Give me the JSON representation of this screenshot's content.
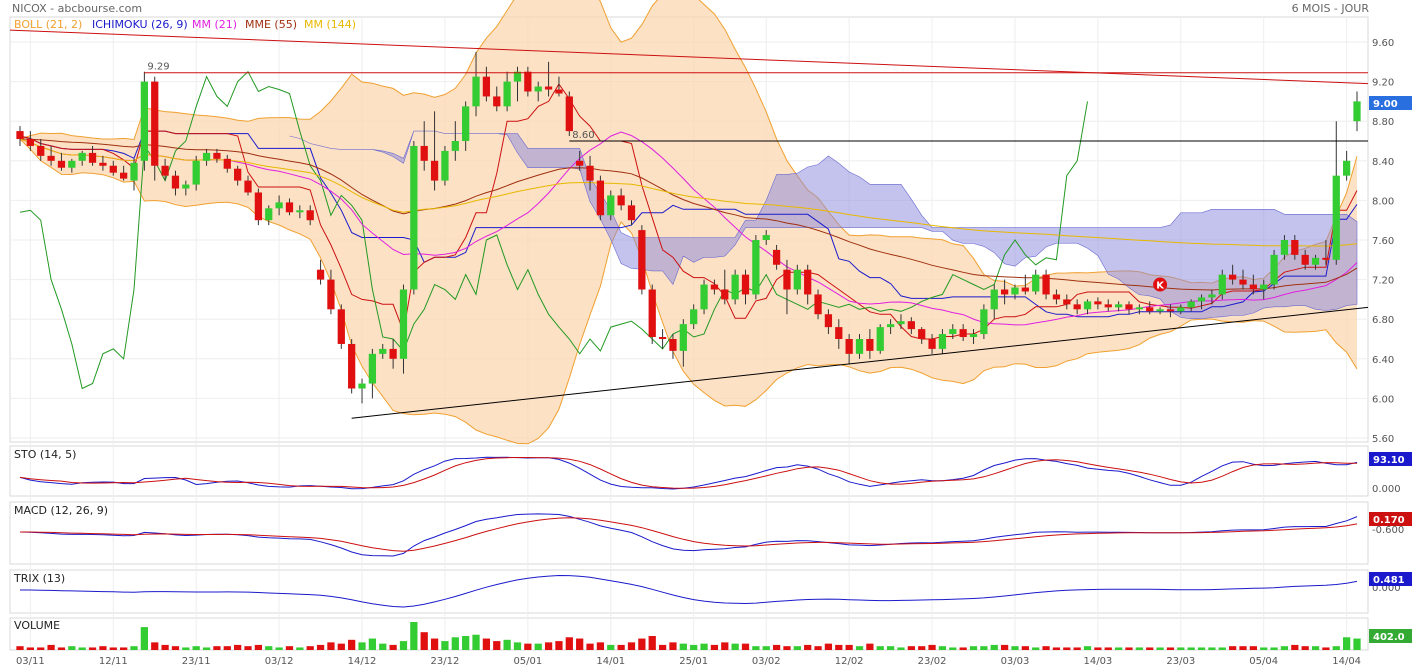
{
  "header": {
    "site_title": "NICOX - abcbourse.com",
    "period": "6 MOIS - JOUR"
  },
  "legend": [
    {
      "label": "BOLL (21, 2)",
      "color": "#f0a030"
    },
    {
      "label": "ICHIMOKU (26, 9)",
      "color": "#1a1acc"
    },
    {
      "label": "MM (21)",
      "color": "#e020e0"
    },
    {
      "label": "MME (55)",
      "color": "#a03010"
    },
    {
      "label": "MM (144)",
      "color": "#e8b800"
    }
  ],
  "chart_data": [
    {
      "type": "candlestick",
      "title": "NICOX",
      "ylim": [
        5.6,
        9.8
      ],
      "yticks": [
        "5.60",
        "6.00",
        "6.40",
        "6.80",
        "7.20",
        "7.60",
        "8.00",
        "8.40",
        "8.80",
        "9.20",
        "9.60"
      ],
      "xticks": [
        "03/11",
        "12/11",
        "23/11",
        "03/12",
        "14/12",
        "23/12",
        "05/01",
        "14/01",
        "25/01",
        "03/02",
        "12/02",
        "23/02",
        "03/03",
        "14/03",
        "23/03",
        "05/04",
        "14/04"
      ],
      "annotations": [
        {
          "text": "9.29",
          "value": 9.29
        },
        {
          "text": "8.60",
          "value": 8.6
        }
      ],
      "last_value": {
        "text": "9.00",
        "value": 9.0
      },
      "signal_marker": {
        "text": "K",
        "value": 7.15
      },
      "horizontal_lines": [
        9.29,
        8.6
      ],
      "colors": {
        "up": "#33cc33",
        "down": "#e01010",
        "cloud": "#8888dd",
        "bollinger_band": "#fbd7b0"
      },
      "ohlc": [
        [
          8.7,
          8.75,
          8.55,
          8.62
        ],
        [
          8.62,
          8.7,
          8.5,
          8.55
        ],
        [
          8.55,
          8.62,
          8.4,
          8.45
        ],
        [
          8.45,
          8.55,
          8.35,
          8.4
        ],
        [
          8.4,
          8.48,
          8.3,
          8.33
        ],
        [
          8.33,
          8.42,
          8.28,
          8.4
        ],
        [
          8.4,
          8.5,
          8.35,
          8.48
        ],
        [
          8.48,
          8.55,
          8.35,
          8.38
        ],
        [
          8.38,
          8.45,
          8.3,
          8.35
        ],
        [
          8.35,
          8.4,
          8.25,
          8.28
        ],
        [
          8.28,
          8.35,
          8.2,
          8.22
        ],
        [
          8.2,
          8.42,
          8.1,
          8.38
        ],
        [
          8.4,
          9.3,
          8.3,
          9.2
        ],
        [
          9.2,
          9.25,
          8.2,
          8.35
        ],
        [
          8.35,
          8.42,
          8.2,
          8.25
        ],
        [
          8.25,
          8.3,
          8.05,
          8.12
        ],
        [
          8.12,
          8.2,
          8.05,
          8.16
        ],
        [
          8.16,
          8.45,
          8.1,
          8.4
        ],
        [
          8.4,
          8.52,
          8.35,
          8.48
        ],
        [
          8.48,
          8.52,
          8.38,
          8.42
        ],
        [
          8.42,
          8.46,
          8.28,
          8.32
        ],
        [
          8.32,
          8.35,
          8.15,
          8.2
        ],
        [
          8.2,
          8.25,
          8.05,
          8.08
        ],
        [
          8.08,
          8.12,
          7.75,
          7.8
        ],
        [
          7.8,
          7.95,
          7.75,
          7.92
        ],
        [
          7.92,
          8.05,
          7.85,
          7.98
        ],
        [
          7.98,
          8.02,
          7.85,
          7.88
        ],
        [
          7.88,
          7.95,
          7.82,
          7.9
        ],
        [
          7.9,
          7.95,
          7.75,
          7.8
        ],
        [
          7.3,
          7.4,
          7.15,
          7.2
        ],
        [
          7.2,
          7.3,
          6.85,
          6.9
        ],
        [
          6.9,
          6.95,
          6.5,
          6.55
        ],
        [
          6.55,
          6.6,
          6.05,
          6.1
        ],
        [
          6.1,
          6.2,
          5.95,
          6.15
        ],
        [
          6.15,
          6.5,
          6.0,
          6.45
        ],
        [
          6.45,
          6.55,
          6.4,
          6.5
        ],
        [
          6.5,
          6.6,
          6.3,
          6.4
        ],
        [
          6.4,
          7.15,
          6.25,
          7.1
        ],
        [
          7.1,
          8.6,
          7.05,
          8.55
        ],
        [
          8.55,
          8.8,
          8.3,
          8.4
        ],
        [
          8.4,
          8.9,
          8.1,
          8.2
        ],
        [
          8.2,
          8.55,
          8.15,
          8.5
        ],
        [
          8.5,
          8.8,
          8.4,
          8.6
        ],
        [
          8.6,
          9.0,
          8.5,
          8.95
        ],
        [
          8.95,
          9.5,
          8.85,
          9.25
        ],
        [
          9.25,
          9.35,
          9.0,
          9.05
        ],
        [
          9.05,
          9.15,
          8.9,
          8.95
        ],
        [
          8.95,
          9.3,
          8.9,
          9.2
        ],
        [
          9.2,
          9.35,
          9.0,
          9.3
        ],
        [
          9.3,
          9.35,
          9.05,
          9.1
        ],
        [
          9.1,
          9.2,
          9.0,
          9.15
        ],
        [
          9.15,
          9.4,
          9.05,
          9.12
        ],
        [
          9.12,
          9.25,
          9.05,
          9.08
        ],
        [
          9.05,
          9.1,
          8.65,
          8.7
        ],
        [
          8.4,
          8.5,
          8.3,
          8.35
        ],
        [
          8.35,
          8.45,
          8.1,
          8.2
        ],
        [
          8.2,
          8.25,
          7.8,
          7.85
        ],
        [
          7.85,
          8.1,
          7.8,
          8.05
        ],
        [
          8.05,
          8.12,
          7.9,
          7.95
        ],
        [
          7.95,
          8.0,
          7.75,
          7.8
        ],
        [
          7.7,
          7.75,
          7.05,
          7.1
        ],
        [
          7.1,
          7.15,
          6.55,
          6.62
        ],
        [
          6.62,
          6.7,
          6.5,
          6.6
        ],
        [
          6.6,
          6.65,
          6.4,
          6.48
        ],
        [
          6.48,
          6.8,
          6.32,
          6.75
        ],
        [
          6.75,
          6.95,
          6.7,
          6.9
        ],
        [
          6.9,
          7.2,
          6.85,
          7.15
        ],
        [
          7.15,
          7.2,
          7.05,
          7.1
        ],
        [
          7.1,
          7.3,
          6.95,
          7.0
        ],
        [
          7.0,
          7.3,
          6.95,
          7.25
        ],
        [
          7.25,
          7.3,
          6.95,
          7.05
        ],
        [
          7.05,
          7.65,
          7.0,
          7.6
        ],
        [
          7.6,
          7.7,
          7.55,
          7.65
        ],
        [
          7.5,
          7.55,
          7.3,
          7.35
        ],
        [
          7.3,
          7.4,
          6.85,
          7.1
        ],
        [
          7.1,
          7.35,
          7.05,
          7.3
        ],
        [
          7.3,
          7.35,
          6.95,
          7.05
        ],
        [
          7.05,
          7.1,
          6.8,
          6.85
        ],
        [
          6.85,
          6.9,
          6.65,
          6.72
        ],
        [
          6.72,
          6.8,
          6.5,
          6.6
        ],
        [
          6.6,
          6.65,
          6.35,
          6.45
        ],
        [
          6.45,
          6.65,
          6.4,
          6.6
        ],
        [
          6.6,
          6.7,
          6.4,
          6.48
        ],
        [
          6.48,
          6.75,
          6.45,
          6.72
        ],
        [
          6.72,
          6.8,
          6.65,
          6.75
        ],
        [
          6.75,
          6.85,
          6.7,
          6.78
        ],
        [
          6.78,
          6.82,
          6.65,
          6.7
        ],
        [
          6.7,
          6.72,
          6.55,
          6.6
        ],
        [
          6.6,
          6.65,
          6.45,
          6.5
        ],
        [
          6.5,
          6.7,
          6.45,
          6.65
        ],
        [
          6.65,
          6.75,
          6.6,
          6.7
        ],
        [
          6.7,
          6.75,
          6.58,
          6.62
        ],
        [
          6.62,
          6.7,
          6.55,
          6.65
        ],
        [
          6.65,
          6.95,
          6.6,
          6.9
        ],
        [
          6.9,
          7.15,
          6.8,
          7.1
        ],
        [
          7.1,
          7.2,
          6.95,
          7.05
        ],
        [
          7.05,
          7.15,
          7.0,
          7.12
        ],
        [
          7.12,
          7.25,
          7.05,
          7.08
        ],
        [
          7.08,
          7.3,
          7.05,
          7.25
        ],
        [
          7.25,
          7.3,
          7.0,
          7.05
        ],
        [
          7.05,
          7.1,
          6.95,
          7.0
        ],
        [
          7.0,
          7.05,
          6.9,
          6.95
        ],
        [
          6.95,
          7.0,
          6.85,
          6.9
        ],
        [
          6.9,
          7.0,
          6.85,
          6.98
        ],
        [
          6.98,
          7.02,
          6.9,
          6.95
        ],
        [
          6.95,
          7.0,
          6.88,
          6.92
        ],
        [
          6.92,
          6.98,
          6.88,
          6.95
        ],
        [
          6.95,
          6.98,
          6.85,
          6.9
        ],
        [
          6.9,
          6.95,
          6.85,
          6.92
        ],
        [
          6.92,
          6.98,
          6.85,
          6.88
        ],
        [
          6.88,
          6.92,
          6.85,
          6.9
        ],
        [
          6.9,
          6.95,
          6.82,
          6.88
        ],
        [
          6.88,
          6.95,
          6.85,
          6.92
        ],
        [
          6.92,
          7.0,
          6.88,
          6.98
        ],
        [
          6.98,
          7.05,
          6.9,
          7.02
        ],
        [
          7.02,
          7.1,
          6.95,
          7.05
        ],
        [
          7.05,
          7.3,
          7.0,
          7.25
        ],
        [
          7.25,
          7.35,
          7.15,
          7.2
        ],
        [
          7.2,
          7.3,
          7.1,
          7.15
        ],
        [
          7.15,
          7.25,
          7.05,
          7.1
        ],
        [
          7.1,
          7.2,
          7.0,
          7.15
        ],
        [
          7.15,
          7.5,
          7.1,
          7.45
        ],
        [
          7.45,
          7.65,
          7.4,
          7.6
        ],
        [
          7.6,
          7.65,
          7.4,
          7.45
        ],
        [
          7.45,
          7.5,
          7.3,
          7.35
        ],
        [
          7.35,
          7.45,
          7.3,
          7.42
        ],
        [
          7.42,
          7.6,
          7.35,
          7.4
        ],
        [
          7.4,
          8.8,
          7.35,
          8.25
        ],
        [
          8.25,
          8.5,
          8.2,
          8.4
        ],
        [
          8.8,
          9.1,
          8.7,
          9.0
        ]
      ],
      "volume": [
        3,
        2,
        2,
        4,
        2,
        3,
        2,
        2,
        3,
        2,
        2,
        3,
        18,
        6,
        4,
        3,
        2,
        3,
        2,
        3,
        3,
        4,
        3,
        4,
        3,
        2,
        3,
        2,
        3,
        4,
        6,
        5,
        8,
        6,
        9,
        5,
        4,
        7,
        22,
        14,
        9,
        7,
        10,
        11,
        12,
        9,
        7,
        8,
        6,
        5,
        5,
        6,
        7,
        10,
        9,
        5,
        6,
        4,
        4,
        6,
        9,
        11,
        4,
        6,
        5,
        4,
        5,
        4,
        6,
        5,
        5,
        3,
        3,
        4,
        3,
        3,
        4,
        3,
        5,
        4,
        4,
        3,
        5,
        3,
        3,
        2,
        3,
        3,
        4,
        3,
        2,
        2,
        3,
        3,
        4,
        4,
        3,
        3,
        2,
        3,
        2,
        2,
        2,
        3,
        2,
        2,
        2,
        2,
        2,
        2,
        2,
        2,
        2,
        2,
        2,
        2,
        2,
        3,
        3,
        3,
        2,
        2,
        3,
        4,
        3,
        3,
        2,
        3,
        10,
        9,
        8
      ]
    },
    {
      "type": "line",
      "title": "STO (14, 5)",
      "last_value": "93.10",
      "ytick_label": "0.000",
      "colors": {
        "k": "#1a1acc",
        "d": "#cc1010",
        "badge": "#1a1acc"
      }
    },
    {
      "type": "line",
      "title": "MACD (12, 26, 9)",
      "last_value": "0.170",
      "ytick_label": "-0.600",
      "colors": {
        "macd": "#1a1acc",
        "signal": "#cc1010",
        "badge": "#cc1010"
      }
    },
    {
      "type": "line",
      "title": "TRIX (13)",
      "last_value": "0.481",
      "ytick_label": "0.000",
      "colors": {
        "trix": "#1a1acc",
        "badge": "#1a1acc"
      }
    },
    {
      "type": "bar",
      "title": "VOLUME",
      "last_value": "402.0",
      "colors": {
        "up": "#33cc33",
        "down": "#e01010",
        "badge": "#33aa33"
      }
    }
  ]
}
